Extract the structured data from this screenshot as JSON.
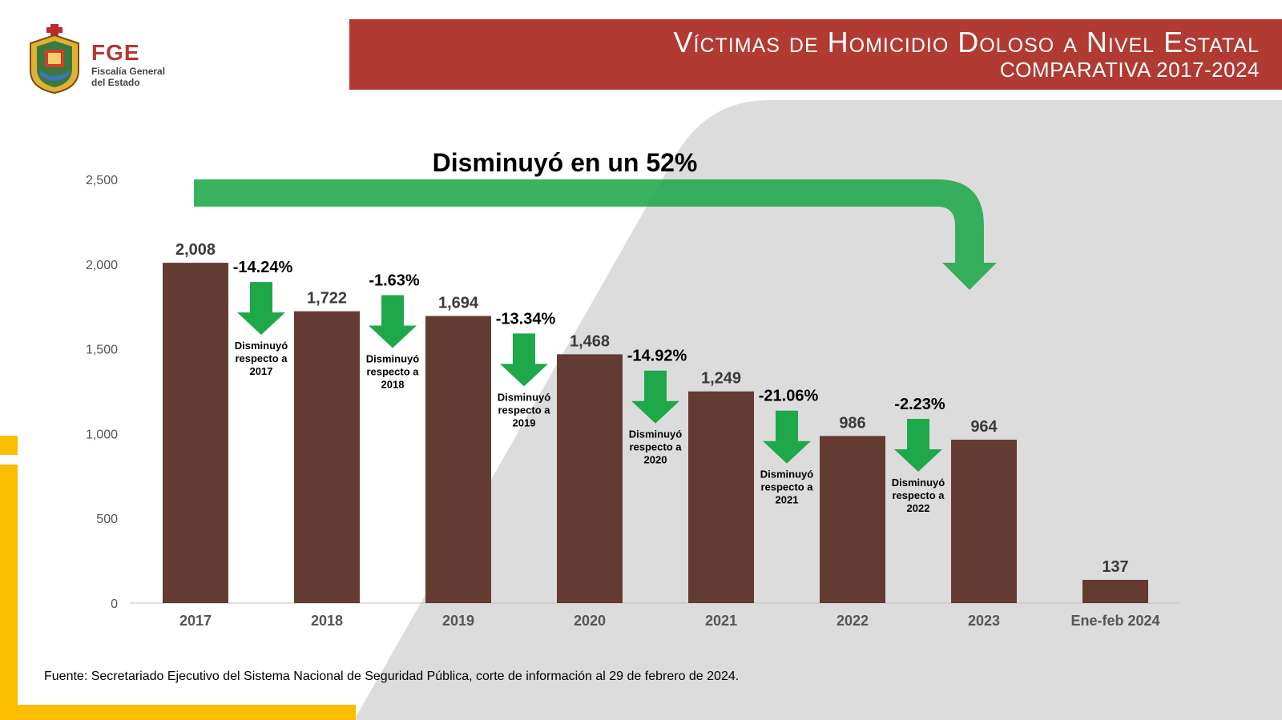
{
  "header": {
    "title": "Víctimas de Homicidio Doloso a Nivel Estatal",
    "subtitle": "COMPARATIVA 2017-2024"
  },
  "logo": {
    "acronym": "FGE",
    "line1": "Fiscalía General",
    "line2": "del Estado"
  },
  "headline": "Disminuyó en un 52%",
  "footer": {
    "source": "Fuente: Secretariado Ejecutivo del Sistema Nacional de Seguridad Pública, corte de información al 29 de febrero de 2024."
  },
  "colors": {
    "header_band": "#b13a32",
    "bar": "#5d3128",
    "arrow": "#1ea84a",
    "accent_yellow": "#fbbd00",
    "background_shape": "#dcdcdc"
  },
  "chart_data": {
    "type": "bar",
    "categories": [
      "2017",
      "2018",
      "2019",
      "2020",
      "2021",
      "2022",
      "2023",
      "Ene-feb 2024"
    ],
    "values": [
      2008,
      1722,
      1694,
      1468,
      1249,
      986,
      964,
      137
    ],
    "value_labels": [
      "2,008",
      "1,722",
      "1,694",
      "1,468",
      "1,249",
      "986",
      "964",
      "137"
    ],
    "yticks": [
      0,
      500,
      1000,
      1500,
      2000,
      2500
    ],
    "ytick_labels": [
      "0",
      "500",
      "1,000",
      "1,500",
      "2,000",
      "2,500"
    ],
    "ylim": [
      0,
      2500
    ],
    "title": "",
    "xlabel": "",
    "ylabel": "",
    "grid": false,
    "changes": [
      {
        "pct": "-14.24%",
        "line1": "Disminuyó",
        "line2": "respecto a",
        "line3": "2017"
      },
      {
        "pct": "-1.63%",
        "line1": "Disminuyó",
        "line2": "respecto a",
        "line3": "2018"
      },
      {
        "pct": "-13.34%",
        "line1": "Disminuyó",
        "line2": "respecto a",
        "line3": "2019"
      },
      {
        "pct": "-14.92%",
        "line1": "Disminuyó",
        "line2": "respecto a",
        "line3": "2020"
      },
      {
        "pct": "-21.06%",
        "line1": "Disminuyó",
        "line2": "respecto a",
        "line3": "2021"
      },
      {
        "pct": "-2.23%",
        "line1": "Disminuyó",
        "line2": "respecto a",
        "line3": "2022"
      }
    ]
  }
}
